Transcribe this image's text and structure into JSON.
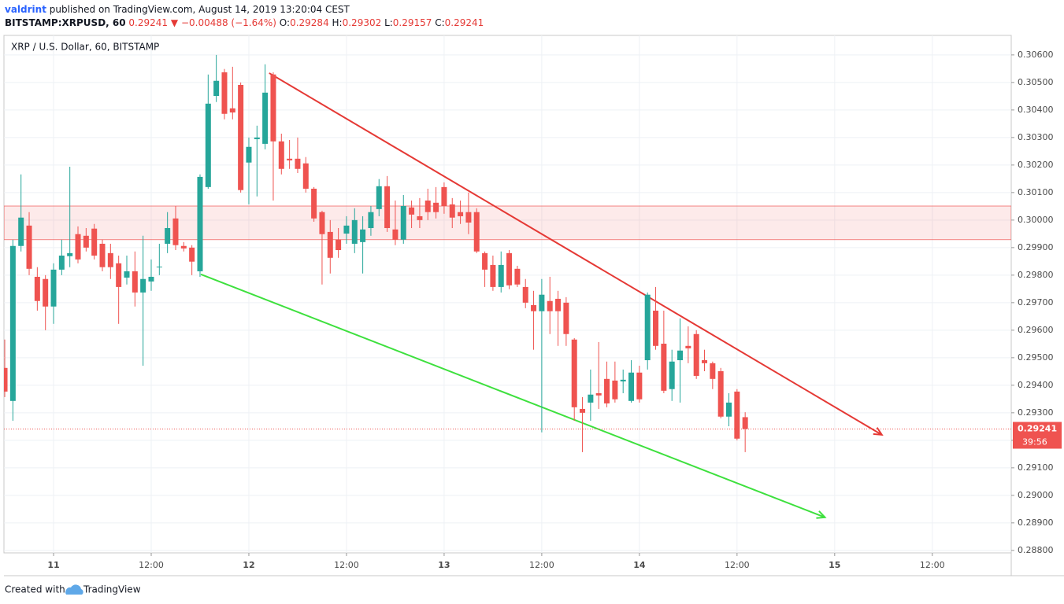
{
  "header": {
    "author": "valdrint",
    "published": "published on TradingView.com, August 14, 2019 13:20:04 CEST",
    "symbol": "BITSTAMP:XRPUSD, 60",
    "price": "0.29241",
    "arrow": "▼",
    "change": "−0.00488 (−1.64%)",
    "ohlc": [
      {
        "label": "O:",
        "value": "0.29284"
      },
      {
        "label": "H:",
        "value": "0.29302"
      },
      {
        "label": "L:",
        "value": "0.29157"
      },
      {
        "label": "C:",
        "value": "0.29241"
      }
    ]
  },
  "footer": {
    "text": "Created with",
    "brand": "TradingView"
  },
  "chart_data": {
    "type": "candlestick",
    "title": "XRP / U.S. Dollar, 60, BITSTAMP",
    "up_color": "#26a69a",
    "down_color": "#ef5350",
    "grid": true,
    "x": [
      -6,
      -5,
      -4,
      -3,
      -2,
      -1,
      0,
      1,
      2,
      3,
      4,
      5,
      6,
      7,
      8,
      9,
      10,
      11,
      12,
      13,
      14,
      15,
      16,
      17,
      18,
      19,
      20,
      21,
      22,
      23,
      24,
      25,
      26,
      27,
      28,
      29,
      30,
      31,
      32,
      33,
      34,
      35,
      36,
      37,
      38,
      39,
      40,
      41,
      42,
      43,
      44,
      45,
      46,
      47,
      48,
      49,
      50,
      51,
      52,
      53,
      54,
      55,
      56,
      57,
      58,
      59,
      60,
      61,
      62,
      63,
      64,
      65,
      66,
      67,
      68,
      69,
      70,
      71,
      72,
      73,
      74,
      75,
      76,
      77,
      78,
      79,
      80,
      81,
      82,
      83,
      84,
      85
    ],
    "open": [
      0.29463,
      0.29343,
      0.29906,
      0.2998,
      0.29794,
      0.29786,
      0.29686,
      0.2982,
      0.29869,
      0.29949,
      0.29943,
      0.29969,
      0.29914,
      0.2988,
      0.29843,
      0.29791,
      0.29814,
      0.29737,
      0.29777,
      0.29829,
      0.29914,
      0.30006,
      0.29906,
      0.299,
      0.29814,
      0.3012,
      0.30451,
      0.30537,
      0.30406,
      0.30491,
      0.30209,
      0.30294,
      0.30277,
      0.30529,
      0.30286,
      0.30223,
      0.30223,
      0.30206,
      0.30114,
      0.30029,
      0.29957,
      0.29929,
      0.29951,
      0.29914,
      0.2992,
      0.29971,
      0.3004,
      0.30123,
      0.29966,
      0.29929,
      0.30046,
      0.30014,
      0.30071,
      0.30063,
      0.3012,
      0.30057,
      0.30029,
      0.30029,
      0.30029,
      0.2988,
      0.29837,
      0.29757,
      0.2988,
      0.29823,
      0.29757,
      0.29691,
      0.29669,
      0.29706,
      0.29714,
      0.297,
      0.29566,
      0.29314,
      0.29337,
      0.29371,
      0.29423,
      0.29417,
      0.29414,
      0.29343,
      0.29446,
      0.29491,
      0.29671,
      0.29551,
      0.29386,
      0.29491,
      0.29543,
      0.29586,
      0.29491,
      0.2948,
      0.29451,
      0.29286,
      0.29377,
      0.29284
    ],
    "high": [
      0.29566,
      0.29929,
      0.30166,
      0.30029,
      0.29829,
      0.298,
      0.29843,
      0.29929,
      0.30194,
      0.29977,
      0.29971,
      0.29986,
      0.29929,
      0.29914,
      0.29871,
      0.29871,
      0.29886,
      0.29943,
      0.29857,
      0.29914,
      0.30029,
      0.30051,
      0.2992,
      0.29909,
      0.30166,
      0.30529,
      0.306,
      0.30549,
      0.30557,
      0.305,
      0.303,
      0.30343,
      0.30566,
      0.30537,
      0.30314,
      0.30291,
      0.303,
      0.30229,
      0.3012,
      0.30034,
      0.3,
      0.29971,
      0.30014,
      0.30043,
      0.30014,
      0.30051,
      0.30149,
      0.3016,
      0.30071,
      0.30091,
      0.30071,
      0.3008,
      0.30114,
      0.3012,
      0.30137,
      0.3008,
      0.30071,
      0.301,
      0.30043,
      0.29886,
      0.29871,
      0.29886,
      0.29891,
      0.29834,
      0.29786,
      0.29743,
      0.29786,
      0.29794,
      0.29743,
      0.2972,
      0.29571,
      0.29357,
      0.29457,
      0.29557,
      0.29486,
      0.29486,
      0.29457,
      0.29491,
      0.29471,
      0.29737,
      0.29757,
      0.29671,
      0.29529,
      0.29643,
      0.29614,
      0.296,
      0.29529,
      0.29486,
      0.29463,
      0.29371,
      0.29386,
      0.29302
    ],
    "low": [
      0.29357,
      0.29271,
      0.29886,
      0.298,
      0.29671,
      0.296,
      0.29623,
      0.298,
      0.29829,
      0.29843,
      0.29886,
      0.29857,
      0.29814,
      0.29786,
      0.29623,
      0.29766,
      0.29686,
      0.29471,
      0.29743,
      0.298,
      0.2988,
      0.29891,
      0.29886,
      0.298,
      0.29794,
      0.30114,
      0.30429,
      0.30366,
      0.30366,
      0.301,
      0.30057,
      0.30086,
      0.30257,
      0.30071,
      0.30166,
      0.30186,
      0.30171,
      0.301,
      0.29994,
      0.29766,
      0.29806,
      0.29863,
      0.29914,
      0.2988,
      0.29806,
      0.29943,
      0.30014,
      0.29957,
      0.29909,
      0.29914,
      0.29971,
      0.29971,
      0.3,
      0.30006,
      0.30023,
      0.29971,
      0.29986,
      0.29949,
      0.2988,
      0.29757,
      0.29743,
      0.29737,
      0.29749,
      0.29757,
      0.2968,
      0.29529,
      0.29229,
      0.29586,
      0.29543,
      0.29543,
      0.29271,
      0.29157,
      0.29271,
      0.29314,
      0.2932,
      0.29337,
      0.29371,
      0.29337,
      0.29337,
      0.29457,
      0.29529,
      0.29371,
      0.29343,
      0.29337,
      0.2948,
      0.29423,
      0.29451,
      0.29386,
      0.2928,
      0.29251,
      0.292,
      0.29157
    ],
    "close": [
      0.29377,
      0.29906,
      0.30009,
      0.29823,
      0.29706,
      0.29686,
      0.2982,
      0.29871,
      0.2988,
      0.29857,
      0.299,
      0.29871,
      0.29829,
      0.29829,
      0.29757,
      0.29814,
      0.29737,
      0.29786,
      0.29794,
      0.29831,
      0.29971,
      0.29909,
      0.29897,
      0.29849,
      0.30157,
      0.30423,
      0.30506,
      0.30386,
      0.30391,
      0.30109,
      0.30266,
      0.303,
      0.30463,
      0.30286,
      0.30186,
      0.30217,
      0.30186,
      0.30114,
      0.30006,
      0.29949,
      0.29863,
      0.29891,
      0.2998,
      0.3,
      0.29966,
      0.30029,
      0.30123,
      0.29971,
      0.29929,
      0.30051,
      0.3002,
      0.3,
      0.30029,
      0.30029,
      0.30051,
      0.30009,
      0.30014,
      0.29991,
      0.29886,
      0.2982,
      0.29757,
      0.29837,
      0.29763,
      0.29766,
      0.297,
      0.29669,
      0.29729,
      0.29669,
      0.29669,
      0.29586,
      0.2932,
      0.293,
      0.29366,
      0.29363,
      0.29334,
      0.29349,
      0.2942,
      0.29446,
      0.29349,
      0.29729,
      0.29543,
      0.2938,
      0.29486,
      0.29526,
      0.29534,
      0.29434,
      0.2948,
      0.29423,
      0.29286,
      0.29337,
      0.29206,
      0.29241
    ],
    "xlim": [
      -6.1,
      117.7
    ],
    "xticks": [
      {
        "value": 0,
        "label": "11"
      },
      {
        "value": 12,
        "label": "12:00"
      },
      {
        "value": 24,
        "label": "12"
      },
      {
        "value": 36,
        "label": "12:00"
      },
      {
        "value": 48,
        "label": "13"
      },
      {
        "value": 60,
        "label": "12:00"
      },
      {
        "value": 72,
        "label": "14"
      },
      {
        "value": 84,
        "label": "12:00"
      },
      {
        "value": 96,
        "label": "15"
      },
      {
        "value": 108,
        "label": "12:00"
      }
    ],
    "ylim": [
      0.28791,
      0.30671
    ],
    "yticks": [
      {
        "value": 0.288,
        "label": "0.28800"
      },
      {
        "value": 0.289,
        "label": "0.28900"
      },
      {
        "value": 0.29,
        "label": "0.29000"
      },
      {
        "value": 0.291,
        "label": "0.29100"
      },
      {
        "value": 0.292,
        "label": "0.29200"
      },
      {
        "value": 0.293,
        "label": "0.29300"
      },
      {
        "value": 0.294,
        "label": "0.29400"
      },
      {
        "value": 0.295,
        "label": "0.29500"
      },
      {
        "value": 0.296,
        "label": "0.29600"
      },
      {
        "value": 0.297,
        "label": "0.29700"
      },
      {
        "value": 0.298,
        "label": "0.29800"
      },
      {
        "value": 0.299,
        "label": "0.29900"
      },
      {
        "value": 0.3,
        "label": "0.30000"
      },
      {
        "value": 0.301,
        "label": "0.30100"
      },
      {
        "value": 0.302,
        "label": "0.30200"
      },
      {
        "value": 0.303,
        "label": "0.30300"
      },
      {
        "value": 0.304,
        "label": "0.30400"
      },
      {
        "value": 0.305,
        "label": "0.30500"
      },
      {
        "value": 0.306,
        "label": "0.30600"
      }
    ],
    "last_price": 0.29241,
    "countdown": "39:56",
    "zone": {
      "range": [
        0.29929,
        0.30051
      ],
      "color": "#ef5350"
    },
    "trendlines": [
      {
        "color": "#e53935",
        "x": [
          26.5,
          101.8
        ],
        "y": [
          0.30534,
          0.2922
        ]
      },
      {
        "color": "#3ee03e",
        "x": [
          18.1,
          94.8
        ],
        "y": [
          0.29803,
          0.2892
        ]
      }
    ]
  }
}
